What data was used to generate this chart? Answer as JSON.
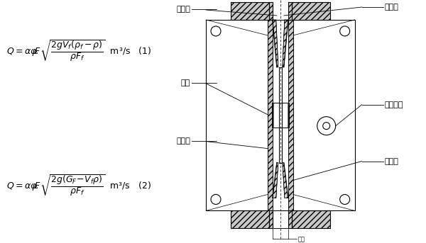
{
  "bg_color": "#ffffff",
  "fig_width": 6.0,
  "fig_height": 3.43,
  "dpi": 100,
  "labels": {
    "display": "显示器",
    "float": "浮子",
    "guide": "导向管",
    "measure_tube": "测量管",
    "follow_system": "随动系统",
    "cone_tube": "锥形管",
    "bottom_label": "平键"
  }
}
